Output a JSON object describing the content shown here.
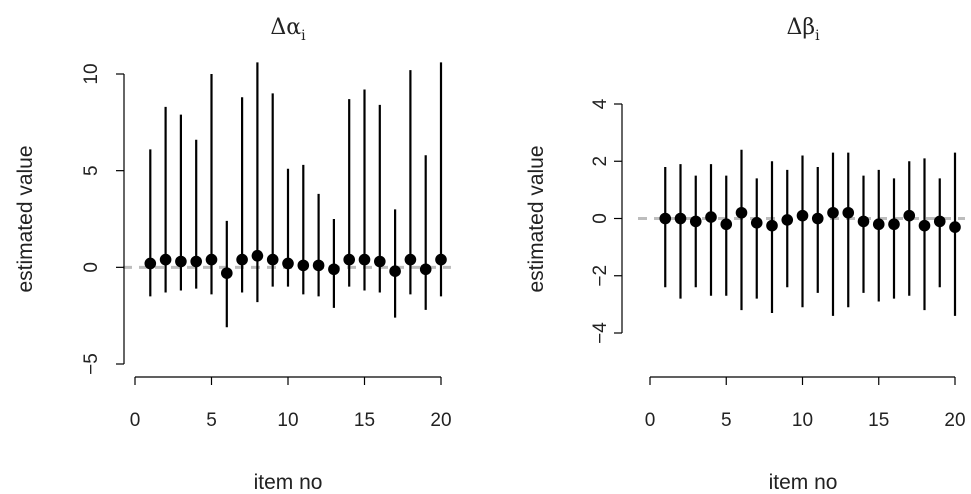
{
  "chart_data": [
    {
      "type": "scatter",
      "title": "Δα",
      "title_subscript": "i",
      "xlabel": "item no",
      "ylabel": "estimated value",
      "xlim": [
        0,
        20
      ],
      "ylim": [
        -5,
        10
      ],
      "xticks": [
        0,
        5,
        10,
        15,
        20
      ],
      "yticks": [
        -5,
        0,
        5,
        10
      ],
      "reference_line": 0,
      "grid": false,
      "points": [
        {
          "x": 1,
          "y": 0.2,
          "lower": -1.5,
          "upper": 6.1
        },
        {
          "x": 2,
          "y": 0.4,
          "lower": -1.3,
          "upper": 8.3
        },
        {
          "x": 3,
          "y": 0.3,
          "lower": -1.2,
          "upper": 7.9
        },
        {
          "x": 4,
          "y": 0.3,
          "lower": -1.1,
          "upper": 6.6
        },
        {
          "x": 5,
          "y": 0.4,
          "lower": -1.4,
          "upper": 10.0
        },
        {
          "x": 6,
          "y": -0.3,
          "lower": -3.1,
          "upper": 2.4
        },
        {
          "x": 7,
          "y": 0.4,
          "lower": -1.3,
          "upper": 8.8
        },
        {
          "x": 8,
          "y": 0.6,
          "lower": -1.8,
          "upper": 10.6
        },
        {
          "x": 9,
          "y": 0.4,
          "lower": -1.0,
          "upper": 9.0
        },
        {
          "x": 10,
          "y": 0.2,
          "lower": -1.0,
          "upper": 5.1
        },
        {
          "x": 11,
          "y": 0.1,
          "lower": -1.4,
          "upper": 5.3
        },
        {
          "x": 12,
          "y": 0.1,
          "lower": -1.5,
          "upper": 3.8
        },
        {
          "x": 13,
          "y": -0.1,
          "lower": -2.1,
          "upper": 2.5
        },
        {
          "x": 14,
          "y": 0.4,
          "lower": -1.0,
          "upper": 8.7
        },
        {
          "x": 15,
          "y": 0.4,
          "lower": -1.2,
          "upper": 9.2
        },
        {
          "x": 16,
          "y": 0.3,
          "lower": -1.3,
          "upper": 8.4
        },
        {
          "x": 17,
          "y": -0.2,
          "lower": -2.6,
          "upper": 3.0
        },
        {
          "x": 18,
          "y": 0.4,
          "lower": -1.4,
          "upper": 10.2
        },
        {
          "x": 19,
          "y": -0.1,
          "lower": -2.2,
          "upper": 5.8
        },
        {
          "x": 20,
          "y": 0.4,
          "lower": -1.5,
          "upper": 10.6
        }
      ]
    },
    {
      "type": "scatter",
      "title": "Δβ",
      "title_subscript": "i",
      "xlabel": "item no",
      "ylabel": "estimated value",
      "xlim": [
        0,
        20
      ],
      "ylim": [
        -4,
        4
      ],
      "xticks": [
        0,
        5,
        10,
        15,
        20
      ],
      "yticks": [
        -4,
        -2,
        0,
        2,
        4
      ],
      "reference_line": 0,
      "grid": false,
      "points": [
        {
          "x": 1,
          "y": 0.0,
          "lower": -2.4,
          "upper": 1.8
        },
        {
          "x": 2,
          "y": 0.0,
          "lower": -2.8,
          "upper": 1.9
        },
        {
          "x": 3,
          "y": -0.1,
          "lower": -2.4,
          "upper": 1.5
        },
        {
          "x": 4,
          "y": 0.05,
          "lower": -2.7,
          "upper": 1.9
        },
        {
          "x": 5,
          "y": -0.2,
          "lower": -2.7,
          "upper": 1.5
        },
        {
          "x": 6,
          "y": 0.2,
          "lower": -3.2,
          "upper": 2.4
        },
        {
          "x": 7,
          "y": -0.15,
          "lower": -2.8,
          "upper": 1.4
        },
        {
          "x": 8,
          "y": -0.25,
          "lower": -3.3,
          "upper": 2.0
        },
        {
          "x": 9,
          "y": -0.05,
          "lower": -2.4,
          "upper": 1.7
        },
        {
          "x": 10,
          "y": 0.1,
          "lower": -3.1,
          "upper": 2.2
        },
        {
          "x": 11,
          "y": 0.0,
          "lower": -2.6,
          "upper": 1.8
        },
        {
          "x": 12,
          "y": 0.2,
          "lower": -3.4,
          "upper": 2.3
        },
        {
          "x": 13,
          "y": 0.2,
          "lower": -3.1,
          "upper": 2.3
        },
        {
          "x": 14,
          "y": -0.1,
          "lower": -2.6,
          "upper": 1.5
        },
        {
          "x": 15,
          "y": -0.2,
          "lower": -2.9,
          "upper": 1.7
        },
        {
          "x": 16,
          "y": -0.2,
          "lower": -2.8,
          "upper": 1.4
        },
        {
          "x": 17,
          "y": 0.1,
          "lower": -2.7,
          "upper": 2.0
        },
        {
          "x": 18,
          "y": -0.25,
          "lower": -3.2,
          "upper": 2.1
        },
        {
          "x": 19,
          "y": -0.1,
          "lower": -2.4,
          "upper": 1.4
        },
        {
          "x": 20,
          "y": -0.3,
          "lower": -3.4,
          "upper": 2.3
        }
      ]
    }
  ]
}
